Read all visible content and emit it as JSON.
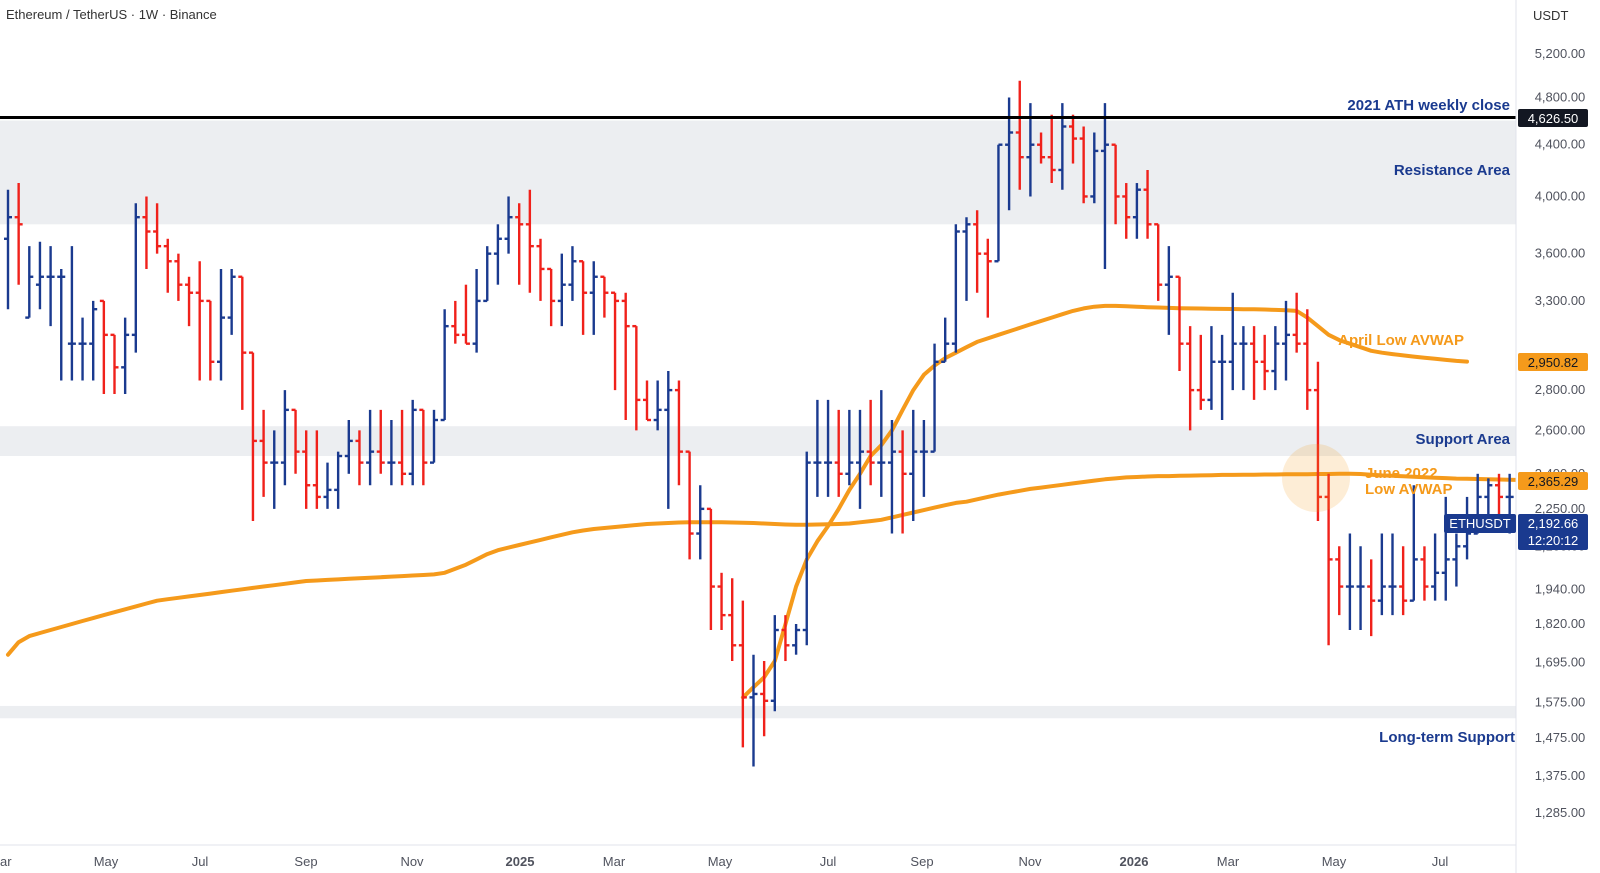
{
  "chart_data": {
    "type": "ohlc",
    "title": "Ethereum / TetherUS · 1W · Binance",
    "currency": "USDT",
    "symbol": "ETHUSDT",
    "last_price": "2,192.66",
    "countdown": "12:20:12",
    "y_axis": {
      "scale": "log",
      "ticks": [
        5200,
        4800,
        4400,
        4000,
        3600,
        3300,
        2800,
        2600,
        2400,
        2250,
        2100,
        1940,
        1820,
        1695,
        1575,
        1475,
        1375,
        1285
      ],
      "tick_labels": [
        "5,200.00",
        "4,800.00",
        "4,400.00",
        "4,000.00",
        "3,600.00",
        "3,300.00",
        "2,800.00",
        "2,600.00",
        "2,400.00",
        "2,250.00",
        "2,100.00",
        "1,940.00",
        "1,820.00",
        "1,695.00",
        "1,575.00",
        "1,475.00",
        "1,375.00",
        "1,285.00"
      ],
      "range": [
        1230,
        5500
      ]
    },
    "x_axis": {
      "labels": [
        "ar",
        "May",
        "Jul",
        "Sep",
        "Nov",
        "2025",
        "Mar",
        "May",
        "Jul",
        "Sep",
        "Nov",
        "2026",
        "Mar",
        "May",
        "Jul"
      ],
      "bold": [
        "2025",
        "2026"
      ]
    },
    "zones": [
      {
        "name": "Resistance Area",
        "from": 3800,
        "to": 4600
      },
      {
        "name": "Support Area",
        "from": 2480,
        "to": 2620
      },
      {
        "name": "Long-term Support",
        "from": 1530,
        "to": 1565
      }
    ],
    "levels": [
      {
        "name": "2021 ATH weekly close",
        "value": 4626.5,
        "label": "4,626.50"
      }
    ],
    "avwap": [
      {
        "name": "April Low AVWAP",
        "badge": "2,950.82"
      },
      {
        "name": "June 2022 Low AVWAP",
        "badge": "2,365.29"
      }
    ],
    "annotations": {
      "ath": "2021 ATH weekly close",
      "resistance": "Resistance Area",
      "support": "Support Area",
      "longterm": "Long-term Support",
      "april": "April Low AVWAP",
      "june_line1": "June 2022",
      "june_line2": "Low AVWAP"
    },
    "colors": {
      "up": "#1a3a8f",
      "down": "#f0211b",
      "avwap": "#f59a1b",
      "zone": "#eceef1",
      "ath": "#000000"
    },
    "bars": [
      {
        "o": 3700,
        "h": 4050,
        "l": 3250,
        "c": 3850
      },
      {
        "o": 3850,
        "h": 4100,
        "l": 3400,
        "c": 3800
      },
      {
        "o": 3200,
        "h": 3650,
        "l": 3400,
        "c": 3450
      },
      {
        "o": 3400,
        "h": 3680,
        "l": 3250,
        "c": 3450
      },
      {
        "o": 3450,
        "h": 3650,
        "l": 3150,
        "c": 3450
      },
      {
        "o": 3450,
        "h": 3500,
        "l": 2850,
        "c": 3450
      },
      {
        "o": 3050,
        "h": 3650,
        "l": 2850,
        "c": 3050
      },
      {
        "o": 3050,
        "h": 3200,
        "l": 2850,
        "c": 3050
      },
      {
        "o": 3050,
        "h": 3300,
        "l": 2850,
        "c": 3250
      },
      {
        "o": 3300,
        "h": 3250,
        "l": 2780,
        "c": 3100
      },
      {
        "o": 3100,
        "h": 3050,
        "l": 2780,
        "c": 2920
      },
      {
        "o": 2920,
        "h": 3200,
        "l": 2780,
        "c": 3100
      },
      {
        "o": 3100,
        "h": 3950,
        "l": 3000,
        "c": 3850
      },
      {
        "o": 3850,
        "h": 4000,
        "l": 3500,
        "c": 3750
      },
      {
        "o": 3750,
        "h": 3950,
        "l": 3600,
        "c": 3650
      },
      {
        "o": 3650,
        "h": 3700,
        "l": 3350,
        "c": 3550
      },
      {
        "o": 3550,
        "h": 3600,
        "l": 3300,
        "c": 3400
      },
      {
        "o": 3400,
        "h": 3450,
        "l": 3150,
        "c": 3350
      },
      {
        "o": 3350,
        "h": 3550,
        "l": 2850,
        "c": 3300
      },
      {
        "o": 3300,
        "h": 3250,
        "l": 2850,
        "c": 2950
      },
      {
        "o": 2950,
        "h": 3500,
        "l": 2850,
        "c": 3200
      },
      {
        "o": 3200,
        "h": 3500,
        "l": 3100,
        "c": 3450
      },
      {
        "o": 3450,
        "h": 3400,
        "l": 2700,
        "c": 3000
      },
      {
        "o": 3000,
        "h": 2650,
        "l": 2200,
        "c": 2550
      },
      {
        "o": 2550,
        "h": 2700,
        "l": 2300,
        "c": 2450
      },
      {
        "o": 2450,
        "h": 2600,
        "l": 2250,
        "c": 2450
      },
      {
        "o": 2450,
        "h": 2800,
        "l": 2350,
        "c": 2700
      },
      {
        "o": 2700,
        "h": 2700,
        "l": 2400,
        "c": 2500
      },
      {
        "o": 2500,
        "h": 2600,
        "l": 2250,
        "c": 2350
      },
      {
        "o": 2350,
        "h": 2600,
        "l": 2250,
        "c": 2300
      },
      {
        "o": 2300,
        "h": 2450,
        "l": 2250,
        "c": 2330
      },
      {
        "o": 2330,
        "h": 2500,
        "l": 2250,
        "c": 2480
      },
      {
        "o": 2480,
        "h": 2650,
        "l": 2400,
        "c": 2550
      },
      {
        "o": 2550,
        "h": 2600,
        "l": 2350,
        "c": 2450
      },
      {
        "o": 2450,
        "h": 2700,
        "l": 2350,
        "c": 2500
      },
      {
        "o": 2500,
        "h": 2700,
        "l": 2400,
        "c": 2450
      },
      {
        "o": 2450,
        "h": 2650,
        "l": 2350,
        "c": 2450
      },
      {
        "o": 2450,
        "h": 2700,
        "l": 2350,
        "c": 2400
      },
      {
        "o": 2400,
        "h": 2750,
        "l": 2350,
        "c": 2700
      },
      {
        "o": 2700,
        "h": 2700,
        "l": 2350,
        "c": 2450
      },
      {
        "o": 2450,
        "h": 2700,
        "l": 2450,
        "c": 2650
      },
      {
        "o": 2650,
        "h": 3250,
        "l": 2750,
        "c": 3150
      },
      {
        "o": 3150,
        "h": 3300,
        "l": 3050,
        "c": 3100
      },
      {
        "o": 3100,
        "h": 3400,
        "l": 3050,
        "c": 3050
      },
      {
        "o": 3050,
        "h": 3500,
        "l": 3000,
        "c": 3300
      },
      {
        "o": 3300,
        "h": 3650,
        "l": 3300,
        "c": 3600
      },
      {
        "o": 3600,
        "h": 3800,
        "l": 3400,
        "c": 3700
      },
      {
        "o": 3700,
        "h": 4000,
        "l": 3600,
        "c": 3850
      },
      {
        "o": 3850,
        "h": 3950,
        "l": 3400,
        "c": 3800
      },
      {
        "o": 3800,
        "h": 4050,
        "l": 3350,
        "c": 3650
      },
      {
        "o": 3650,
        "h": 3700,
        "l": 3300,
        "c": 3500
      },
      {
        "o": 3500,
        "h": 3450,
        "l": 3150,
        "c": 3300
      },
      {
        "o": 3300,
        "h": 3600,
        "l": 3150,
        "c": 3400
      },
      {
        "o": 3400,
        "h": 3650,
        "l": 3300,
        "c": 3550
      },
      {
        "o": 3550,
        "h": 3500,
        "l": 3100,
        "c": 3350
      },
      {
        "o": 3350,
        "h": 3550,
        "l": 3100,
        "c": 3450
      },
      {
        "o": 3450,
        "h": 3400,
        "l": 3200,
        "c": 3350
      },
      {
        "o": 3350,
        "h": 3350,
        "l": 2800,
        "c": 3300
      },
      {
        "o": 3300,
        "h": 3350,
        "l": 2650,
        "c": 3150
      },
      {
        "o": 3150,
        "h": 3000,
        "l": 2600,
        "c": 2750
      },
      {
        "o": 2750,
        "h": 2850,
        "l": 2650,
        "c": 2650
      },
      {
        "o": 2650,
        "h": 2850,
        "l": 2600,
        "c": 2700
      },
      {
        "o": 2700,
        "h": 2900,
        "l": 2250,
        "c": 2800
      },
      {
        "o": 2800,
        "h": 2850,
        "l": 2350,
        "c": 2500
      },
      {
        "o": 2500,
        "h": 2500,
        "l": 2050,
        "c": 2150
      },
      {
        "o": 2150,
        "h": 2350,
        "l": 2050,
        "c": 2250
      },
      {
        "o": 2250,
        "h": 2250,
        "l": 1800,
        "c": 1950
      },
      {
        "o": 1950,
        "h": 2000,
        "l": 1800,
        "c": 1850
      },
      {
        "o": 1850,
        "h": 1980,
        "l": 1700,
        "c": 1750
      },
      {
        "o": 1750,
        "h": 1900,
        "l": 1450,
        "c": 1590
      },
      {
        "o": 1590,
        "h": 1720,
        "l": 1400,
        "c": 1600
      },
      {
        "o": 1600,
        "h": 1700,
        "l": 1480,
        "c": 1580
      },
      {
        "o": 1580,
        "h": 1850,
        "l": 1550,
        "c": 1800
      },
      {
        "o": 1800,
        "h": 1850,
        "l": 1700,
        "c": 1750
      },
      {
        "o": 1750,
        "h": 1820,
        "l": 1720,
        "c": 1800
      },
      {
        "o": 1800,
        "h": 2500,
        "l": 1750,
        "c": 2450
      },
      {
        "o": 2450,
        "h": 2750,
        "l": 2300,
        "c": 2450
      },
      {
        "o": 2450,
        "h": 2750,
        "l": 2300,
        "c": 2450
      },
      {
        "o": 2450,
        "h": 2700,
        "l": 2300,
        "c": 2400
      },
      {
        "o": 2400,
        "h": 2700,
        "l": 2350,
        "c": 2450
      },
      {
        "o": 2450,
        "h": 2700,
        "l": 2250,
        "c": 2500
      },
      {
        "o": 2500,
        "h": 2750,
        "l": 2350,
        "c": 2450
      },
      {
        "o": 2450,
        "h": 2800,
        "l": 2300,
        "c": 2450
      },
      {
        "o": 2450,
        "h": 2650,
        "l": 2150,
        "c": 2500
      },
      {
        "o": 2500,
        "h": 2600,
        "l": 2150,
        "c": 2400
      },
      {
        "o": 2400,
        "h": 2700,
        "l": 2200,
        "c": 2500
      },
      {
        "o": 2500,
        "h": 2650,
        "l": 2300,
        "c": 2500
      },
      {
        "o": 2500,
        "h": 3050,
        "l": 2500,
        "c": 2950
      },
      {
        "o": 2950,
        "h": 3200,
        "l": 3000,
        "c": 3050
      },
      {
        "o": 3050,
        "h": 3800,
        "l": 3000,
        "c": 3750
      },
      {
        "o": 3750,
        "h": 3850,
        "l": 3300,
        "c": 3800
      },
      {
        "o": 3800,
        "h": 3900,
        "l": 3350,
        "c": 3600
      },
      {
        "o": 3600,
        "h": 3700,
        "l": 3200,
        "c": 3550
      },
      {
        "o": 3550,
        "h": 4350,
        "l": 3900,
        "c": 4400
      },
      {
        "o": 4400,
        "h": 4800,
        "l": 3900,
        "c": 4500
      },
      {
        "o": 4500,
        "h": 4950,
        "l": 4050,
        "c": 4300
      },
      {
        "o": 4300,
        "h": 4750,
        "l": 4000,
        "c": 4400
      },
      {
        "o": 4400,
        "h": 4500,
        "l": 4250,
        "c": 4300
      },
      {
        "o": 4300,
        "h": 4650,
        "l": 4100,
        "c": 4200
      },
      {
        "o": 4200,
        "h": 4750,
        "l": 4050,
        "c": 4550
      },
      {
        "o": 4550,
        "h": 4650,
        "l": 4250,
        "c": 4450
      },
      {
        "o": 4450,
        "h": 4550,
        "l": 3950,
        "c": 4000
      },
      {
        "o": 4000,
        "h": 4500,
        "l": 3950,
        "c": 4350
      },
      {
        "o": 4350,
        "h": 4750,
        "l": 3500,
        "c": 4400
      },
      {
        "o": 4400,
        "h": 4250,
        "l": 3800,
        "c": 4000
      },
      {
        "o": 4000,
        "h": 4100,
        "l": 3700,
        "c": 3850
      },
      {
        "o": 3850,
        "h": 4100,
        "l": 3700,
        "c": 4050
      },
      {
        "o": 4050,
        "h": 4200,
        "l": 3700,
        "c": 3800
      },
      {
        "o": 3800,
        "h": 3800,
        "l": 3300,
        "c": 3400
      },
      {
        "o": 3400,
        "h": 3650,
        "l": 3100,
        "c": 3450
      },
      {
        "o": 3450,
        "h": 3250,
        "l": 2900,
        "c": 3050
      },
      {
        "o": 3050,
        "h": 3150,
        "l": 2600,
        "c": 2800
      },
      {
        "o": 2800,
        "h": 3100,
        "l": 2700,
        "c": 2750
      },
      {
        "o": 2750,
        "h": 3150,
        "l": 2700,
        "c": 2950
      },
      {
        "o": 2950,
        "h": 3100,
        "l": 2650,
        "c": 2950
      },
      {
        "o": 2950,
        "h": 3350,
        "l": 2800,
        "c": 3050
      },
      {
        "o": 3050,
        "h": 3150,
        "l": 2800,
        "c": 3050
      },
      {
        "o": 3050,
        "h": 3150,
        "l": 2750,
        "c": 2950
      },
      {
        "o": 2950,
        "h": 3100,
        "l": 2800,
        "c": 2900
      },
      {
        "o": 2900,
        "h": 3150,
        "l": 2800,
        "c": 3050
      },
      {
        "o": 3050,
        "h": 3300,
        "l": 2850,
        "c": 3100
      },
      {
        "o": 3100,
        "h": 3350,
        "l": 3000,
        "c": 3050
      },
      {
        "o": 3050,
        "h": 3250,
        "l": 2700,
        "c": 2800
      },
      {
        "o": 2800,
        "h": 2950,
        "l": 2200,
        "c": 2300
      },
      {
        "o": 2300,
        "h": 2400,
        "l": 1750,
        "c": 2050
      },
      {
        "o": 2050,
        "h": 2100,
        "l": 1850,
        "c": 1950
      },
      {
        "o": 1950,
        "h": 2150,
        "l": 1800,
        "c": 1950
      },
      {
        "o": 1950,
        "h": 2100,
        "l": 1800,
        "c": 1950
      },
      {
        "o": 1950,
        "h": 2050,
        "l": 1780,
        "c": 1900
      },
      {
        "o": 1900,
        "h": 2150,
        "l": 1850,
        "c": 1950
      },
      {
        "o": 1950,
        "h": 2150,
        "l": 1850,
        "c": 1950
      },
      {
        "o": 1950,
        "h": 2100,
        "l": 1850,
        "c": 1900
      },
      {
        "o": 1900,
        "h": 2350,
        "l": 1900,
        "c": 2050
      },
      {
        "o": 2050,
        "h": 2100,
        "l": 1900,
        "c": 1950
      },
      {
        "o": 1950,
        "h": 2150,
        "l": 1900,
        "c": 2000
      },
      {
        "o": 2000,
        "h": 2300,
        "l": 1900,
        "c": 2050
      },
      {
        "o": 2050,
        "h": 2150,
        "l": 1950,
        "c": 2100
      },
      {
        "o": 2100,
        "h": 2300,
        "l": 2050,
        "c": 2150
      },
      {
        "o": 2150,
        "h": 2400,
        "l": 2150,
        "c": 2300
      },
      {
        "o": 2300,
        "h": 2380,
        "l": 2200,
        "c": 2350
      },
      {
        "o": 2350,
        "h": 2400,
        "l": 2180,
        "c": 2300
      },
      {
        "o": 2300,
        "h": 2400,
        "l": 2150,
        "c": 2300
      },
      {
        "o": 2300,
        "h": 2380,
        "l": 2150,
        "c": 2350
      },
      {
        "o": 2350,
        "h": 2360,
        "l": 2150,
        "c": 2193
      }
    ],
    "avwap_series": [
      {
        "name": "June 2022 Low AVWAP",
        "start_index": 0,
        "values": [
          1720,
          1760,
          1780,
          1790,
          1800,
          1810,
          1820,
          1830,
          1840,
          1850,
          1860,
          1870,
          1880,
          1890,
          1900,
          1905,
          1910,
          1915,
          1920,
          1925,
          1930,
          1935,
          1940,
          1945,
          1950,
          1955,
          1960,
          1965,
          1970,
          1972,
          1974,
          1976,
          1978,
          1980,
          1982,
          1984,
          1986,
          1988,
          1990,
          1992,
          1994,
          2000,
          2015,
          2030,
          2050,
          2070,
          2085,
          2095,
          2105,
          2115,
          2125,
          2135,
          2145,
          2155,
          2162,
          2168,
          2172,
          2176,
          2180,
          2184,
          2188,
          2190,
          2192,
          2194,
          2195,
          2195,
          2195,
          2195,
          2194,
          2193,
          2192,
          2190,
          2188,
          2186,
          2185,
          2185,
          2186,
          2187,
          2188,
          2190,
          2195,
          2200,
          2205,
          2215,
          2225,
          2235,
          2245,
          2255,
          2265,
          2275,
          2280,
          2290,
          2300,
          2310,
          2318,
          2326,
          2334,
          2340,
          2346,
          2352,
          2358,
          2364,
          2370,
          2376,
          2380,
          2384,
          2386,
          2388,
          2390,
          2390,
          2391,
          2392,
          2393,
          2394,
          2395,
          2395,
          2396,
          2396,
          2397,
          2397,
          2398,
          2398,
          2398,
          2399,
          2399,
          2400,
          2400,
          2399,
          2396,
          2393,
          2391,
          2389,
          2387,
          2385,
          2383,
          2381,
          2379,
          2378,
          2377,
          2376,
          2375,
          2374,
          2373,
          2372,
          2371,
          2370,
          2368,
          2366
        ]
      },
      {
        "name": "April Low AVWAP",
        "start_index": 69,
        "values": [
          1590,
          1620,
          1650,
          1700,
          1820,
          1950,
          2050,
          2120,
          2180,
          2250,
          2330,
          2400,
          2480,
          2530,
          2600,
          2700,
          2800,
          2880,
          2930,
          2970,
          3000,
          3030,
          3060,
          3080,
          3100,
          3120,
          3140,
          3160,
          3180,
          3200,
          3220,
          3240,
          3255,
          3265,
          3270,
          3270,
          3268,
          3265,
          3262,
          3260,
          3258,
          3256,
          3255,
          3254,
          3253,
          3252,
          3251,
          3250,
          3250,
          3248,
          3246,
          3244,
          3240,
          3200,
          3150,
          3100,
          3070,
          3050,
          3030,
          3010,
          3000,
          2992,
          2985,
          2978,
          2972,
          2966,
          2960,
          2955,
          2951
        ]
      }
    ]
  }
}
